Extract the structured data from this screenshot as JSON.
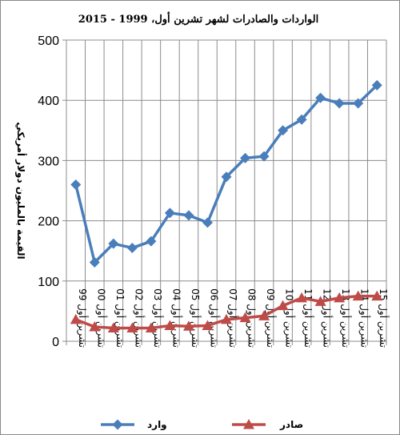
{
  "chart_data": {
    "type": "line",
    "title": "الواردات والصادرات لشهر تشرين أول، 1999 - 2015",
    "ylabel": "القيمة بالمليون دولار أمريكي",
    "xlabel": "",
    "ylim": [
      0,
      500
    ],
    "yticks": [
      "0",
      "100",
      "200",
      "300",
      "400",
      "500"
    ],
    "grid": true,
    "legend_position": "bottom",
    "categories": [
      "تشرين أول 99",
      "تشرين أول 00",
      "تشرين أول 01",
      "تشرين أول 02",
      "تشرين أول 03",
      "تشرين أول 04",
      "تشرين أول 05",
      "تشرين أول 06",
      "تشرين أول 07",
      "تشرين أول 08",
      "تشرين أول 09",
      "تشرين أول 10",
      "تشرين أول 11",
      "تشرين أول 12",
      "تشرين أول 13",
      "تشرين أول 14",
      "تشرين أول 15"
    ],
    "series": [
      {
        "name": "وارد",
        "color": "#4a7ebb",
        "marker": "diamond",
        "values": [
          260,
          131,
          162,
          155,
          166,
          213,
          209,
          197,
          273,
          304,
          307,
          350,
          368,
          404,
          395,
          395,
          425
        ]
      },
      {
        "name": "صادر",
        "color": "#be4b48",
        "marker": "triangle",
        "values": [
          36,
          24,
          22,
          22,
          22,
          26,
          25,
          26,
          36,
          39,
          42,
          59,
          72,
          66,
          72,
          75,
          75
        ]
      }
    ]
  }
}
